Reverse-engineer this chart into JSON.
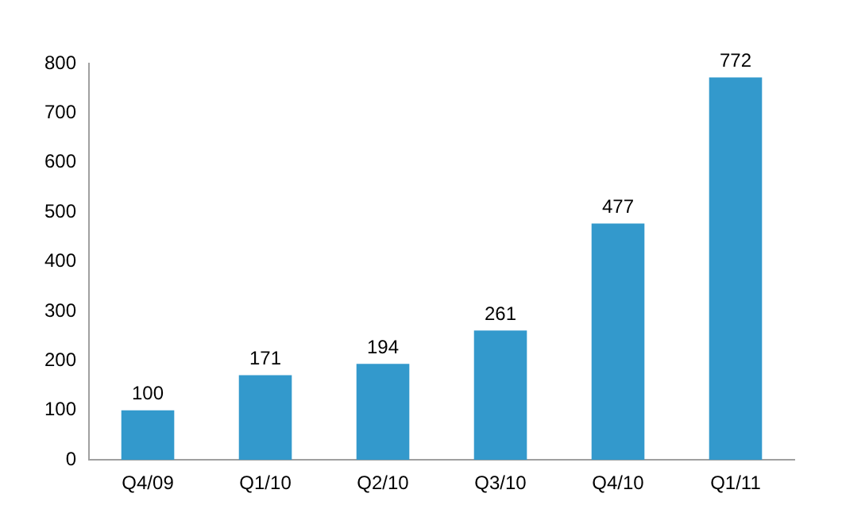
{
  "chart_data": {
    "type": "bar",
    "categories": [
      "Q4/09",
      "Q1/10",
      "Q2/10",
      "Q3/10",
      "Q4/10",
      "Q1/11"
    ],
    "values": [
      100,
      171,
      194,
      261,
      477,
      772
    ],
    "color": "#3399cc",
    "ylim": [
      0,
      800
    ],
    "yticks": [
      0,
      100,
      200,
      300,
      400,
      500,
      600,
      700,
      800
    ],
    "grid": false,
    "legend": false,
    "data_labels": true
  }
}
